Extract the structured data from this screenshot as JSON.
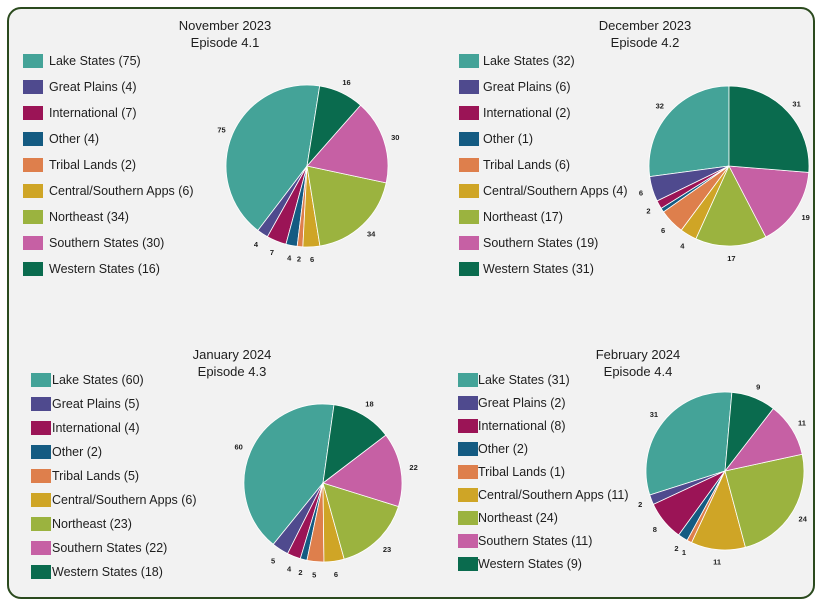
{
  "chart_data": [
    {
      "type": "pie",
      "title": "November 2023",
      "subtitle": "Episode 4.1",
      "legend_labels": [
        "Lake States (75)",
        "Great Plains (4)",
        "International (7)",
        "Other (4)",
        "Tribal Lands (2)",
        "Central/Southern Apps (6)",
        "Northeast (34)",
        "Southern States (30)",
        "Western States (16)"
      ],
      "slice_order": [
        0,
        1,
        2,
        3,
        4,
        5,
        6,
        7,
        8
      ],
      "values": [
        75,
        4,
        7,
        4,
        2,
        6,
        34,
        30,
        16
      ],
      "data_labels": [
        "75",
        "4",
        "7",
        "4",
        "2",
        "6",
        "34",
        "30",
        "16"
      ]
    },
    {
      "type": "pie",
      "title": "December 2023",
      "subtitle": "Episode 4.2",
      "legend_labels": [
        "Lake States (32)",
        "Great Plains (6)",
        "International (2)",
        "Other (1)",
        "Tribal Lands (6)",
        "Central/Southern Apps (4)",
        "Northeast (17)",
        "Southern States (19)",
        "Western States (31)"
      ],
      "slice_order": [
        0,
        1,
        2,
        3,
        4,
        5,
        6,
        7,
        8
      ],
      "values": [
        32,
        6,
        2,
        1,
        6,
        4,
        17,
        19,
        31
      ],
      "data_labels": [
        "32",
        "6",
        "2",
        "",
        "6",
        "4",
        "17",
        "19",
        "31"
      ]
    },
    {
      "type": "pie",
      "title": "January 2024",
      "subtitle": "Episode 4.3",
      "legend_labels": [
        "Lake States (60)",
        "Great Plains (5)",
        "International (4)",
        "Other (2)",
        "Tribal Lands (5)",
        "Central/Southern Apps (6)",
        "Northeast (23)",
        "Southern States (22)",
        "Western States (18)"
      ],
      "slice_order": [
        0,
        1,
        2,
        3,
        4,
        5,
        6,
        7,
        8
      ],
      "values": [
        60,
        5,
        4,
        2,
        5,
        6,
        23,
        22,
        18
      ],
      "data_labels": [
        "60",
        "5",
        "4",
        "2",
        "5",
        "6",
        "23",
        "22",
        "18"
      ]
    },
    {
      "type": "pie",
      "title": "February 2024",
      "subtitle": "Episode 4.4",
      "legend_labels": [
        "Lake States (31)",
        "Great Plains (2)",
        "International (8)",
        "Other (2)",
        "Tribal Lands (1)",
        "Central/Southern Apps (11)",
        "Northeast (24)",
        "Southern States (11)",
        "Western States (9)"
      ],
      "slice_order": [
        0,
        1,
        2,
        3,
        4,
        5,
        6,
        7,
        8
      ],
      "values": [
        31,
        2,
        8,
        2,
        1,
        11,
        24,
        11,
        9
      ],
      "data_labels": [
        "31",
        "2",
        "8",
        "2",
        "1",
        "11",
        "24",
        "11",
        "9"
      ]
    }
  ],
  "colors": [
    "#44a398",
    "#4f4a8e",
    "#9b1456",
    "#145b82",
    "#de7f4c",
    "#cfa526",
    "#9bb33f",
    "#c660a4",
    "#0a6b4e"
  ]
}
